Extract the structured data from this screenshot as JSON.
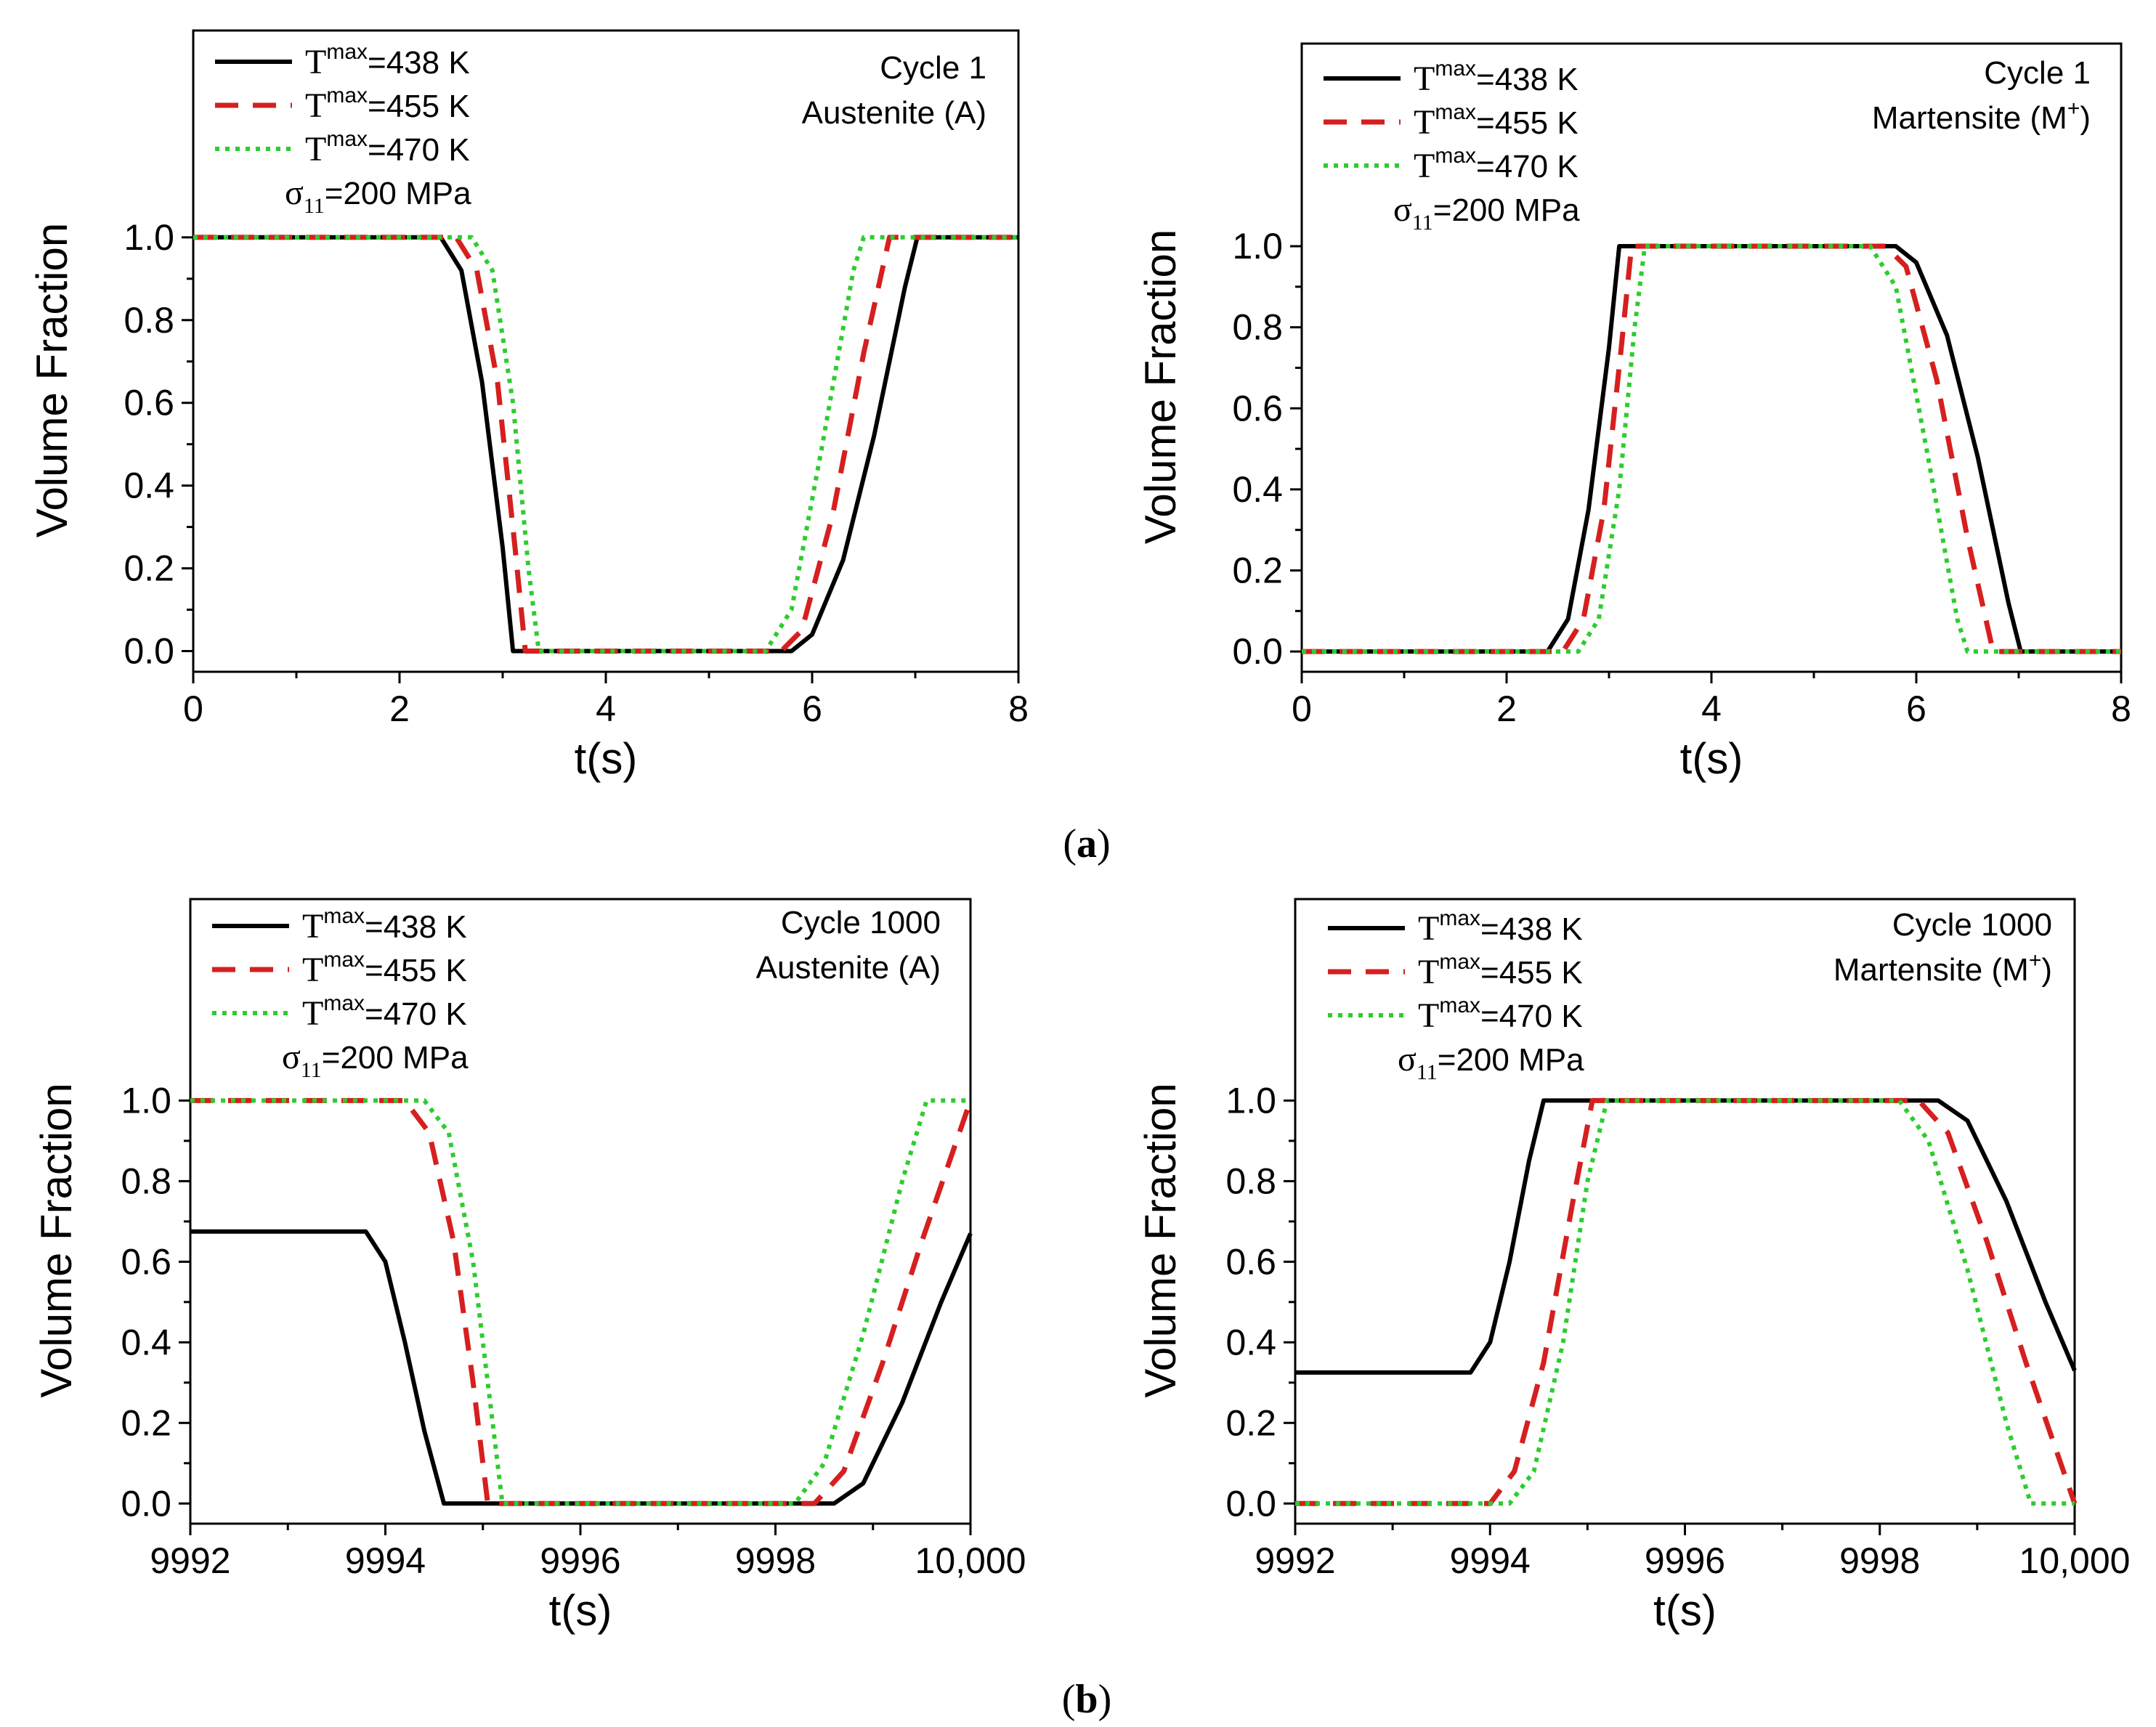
{
  "panel_labels": {
    "a": "a",
    "b": "b"
  },
  "colors": {
    "s438": "#000000",
    "s455": "#d61f1f",
    "s470": "#2ecc2e"
  },
  "chart_data": [
    {
      "type": "line",
      "id": "a-austenite",
      "title": "",
      "annotations": [
        "Cycle 1",
        "Austenite (A)"
      ],
      "xlabel": "t(s)",
      "ylabel": "Volume Fraction",
      "xlim": [
        0,
        8
      ],
      "ylim": [
        -0.05,
        1.5
      ],
      "xticks": [
        0,
        2,
        4,
        6,
        8
      ],
      "xtick_labels": [
        "0",
        "2",
        "4",
        "6",
        "8"
      ],
      "yticks": [
        0,
        0.2,
        0.4,
        0.6,
        0.8,
        1.0
      ],
      "ytick_labels": [
        "0.0",
        "0.2",
        "0.4",
        "0.6",
        "0.8",
        "1.0"
      ],
      "legend": {
        "placement": "top-left",
        "prefix": "T",
        "sup": "max",
        "entries": [
          "=438 K",
          "=455 K",
          "=470 K"
        ],
        "stress": {
          "symbol": "σ",
          "sub": "11",
          "value": "=200 MPa"
        }
      },
      "series": [
        {
          "name": "Tmax=438 K",
          "style": "solid",
          "points": [
            [
              0,
              1
            ],
            [
              2.4,
              1
            ],
            [
              2.6,
              0.92
            ],
            [
              2.8,
              0.65
            ],
            [
              3.0,
              0.25
            ],
            [
              3.1,
              0
            ],
            [
              5.8,
              0
            ],
            [
              6.0,
              0.04
            ],
            [
              6.3,
              0.22
            ],
            [
              6.6,
              0.52
            ],
            [
              6.9,
              0.88
            ],
            [
              7.02,
              1
            ],
            [
              8,
              1
            ]
          ]
        },
        {
          "name": "Tmax=455 K",
          "style": "dashed",
          "points": [
            [
              0,
              1
            ],
            [
              2.55,
              1
            ],
            [
              2.75,
              0.92
            ],
            [
              2.95,
              0.65
            ],
            [
              3.12,
              0.25
            ],
            [
              3.22,
              0
            ],
            [
              5.7,
              0
            ],
            [
              5.9,
              0.05
            ],
            [
              6.2,
              0.33
            ],
            [
              6.5,
              0.72
            ],
            [
              6.75,
              1
            ],
            [
              8,
              1
            ]
          ]
        },
        {
          "name": "Tmax=470 K",
          "style": "dotted",
          "points": [
            [
              0,
              1
            ],
            [
              2.7,
              1
            ],
            [
              2.9,
              0.92
            ],
            [
              3.1,
              0.6
            ],
            [
              3.25,
              0.2
            ],
            [
              3.35,
              0
            ],
            [
              5.55,
              0
            ],
            [
              5.8,
              0.1
            ],
            [
              6.1,
              0.5
            ],
            [
              6.4,
              0.92
            ],
            [
              6.5,
              1
            ],
            [
              8,
              1
            ]
          ]
        }
      ]
    },
    {
      "type": "line",
      "id": "a-martensite",
      "title": "",
      "annotations": [
        "Cycle 1",
        "Martensite (M",
        "+",
        ")"
      ],
      "xlabel": "t(s)",
      "ylabel": "Volume Fraction",
      "xlim": [
        0,
        8
      ],
      "ylim": [
        -0.05,
        1.5
      ],
      "xticks": [
        0,
        2,
        4,
        6,
        8
      ],
      "xtick_labels": [
        "0",
        "2",
        "4",
        "6",
        "8"
      ],
      "yticks": [
        0,
        0.2,
        0.4,
        0.6,
        0.8,
        1.0
      ],
      "ytick_labels": [
        "0.0",
        "0.2",
        "0.4",
        "0.6",
        "0.8",
        "1.0"
      ],
      "legend": {
        "placement": "top-left",
        "prefix": "T",
        "sup": "max",
        "entries": [
          "=438 K",
          "=455 K",
          "=470 K"
        ],
        "stress": {
          "symbol": "σ",
          "sub": "11",
          "value": "=200 MPa"
        }
      },
      "series": [
        {
          "name": "Tmax=438 K",
          "style": "solid",
          "points": [
            [
              0,
              0
            ],
            [
              2.4,
              0
            ],
            [
              2.6,
              0.08
            ],
            [
              2.8,
              0.35
            ],
            [
              3.0,
              0.75
            ],
            [
              3.1,
              1
            ],
            [
              5.8,
              1
            ],
            [
              6.0,
              0.96
            ],
            [
              6.3,
              0.78
            ],
            [
              6.6,
              0.48
            ],
            [
              6.9,
              0.12
            ],
            [
              7.02,
              0
            ],
            [
              8,
              0
            ]
          ]
        },
        {
          "name": "Tmax=455 K",
          "style": "dashed",
          "points": [
            [
              0,
              0
            ],
            [
              2.55,
              0
            ],
            [
              2.75,
              0.08
            ],
            [
              2.95,
              0.35
            ],
            [
              3.12,
              0.75
            ],
            [
              3.22,
              1
            ],
            [
              5.7,
              1
            ],
            [
              5.9,
              0.95
            ],
            [
              6.2,
              0.67
            ],
            [
              6.5,
              0.28
            ],
            [
              6.75,
              0
            ],
            [
              8,
              0
            ]
          ]
        },
        {
          "name": "Tmax=470 K",
          "style": "dotted",
          "points": [
            [
              0,
              0
            ],
            [
              2.7,
              0
            ],
            [
              2.9,
              0.08
            ],
            [
              3.1,
              0.4
            ],
            [
              3.25,
              0.8
            ],
            [
              3.35,
              1
            ],
            [
              5.55,
              1
            ],
            [
              5.8,
              0.9
            ],
            [
              6.1,
              0.5
            ],
            [
              6.4,
              0.08
            ],
            [
              6.5,
              0
            ],
            [
              8,
              0
            ]
          ]
        }
      ]
    },
    {
      "type": "line",
      "id": "b-austenite",
      "title": "",
      "annotations": [
        "Cycle 1000",
        "Austenite (A)"
      ],
      "xlabel": "t(s)",
      "ylabel": "Volume Fraction",
      "xlim": [
        9992,
        10000
      ],
      "ylim": [
        -0.05,
        1.5
      ],
      "xticks": [
        9992,
        9994,
        9996,
        9998,
        10000
      ],
      "xtick_labels": [
        "9992",
        "9994",
        "9996",
        "9998",
        "10,000"
      ],
      "yticks": [
        0,
        0.2,
        0.4,
        0.6,
        0.8,
        1.0
      ],
      "ytick_labels": [
        "0.0",
        "0.2",
        "0.4",
        "0.6",
        "0.8",
        "1.0"
      ],
      "legend": {
        "placement": "top-left",
        "prefix": "T",
        "sup": "max",
        "entries": [
          "=438 K",
          "=455 K",
          "=470 K"
        ],
        "stress": {
          "symbol": "σ",
          "sub": "11",
          "value": "=200 MPa"
        }
      },
      "series": [
        {
          "name": "Tmax=438 K",
          "style": "solid",
          "points": [
            [
              9992,
              0.675
            ],
            [
              9993.8,
              0.675
            ],
            [
              9994.0,
              0.6
            ],
            [
              9994.2,
              0.4
            ],
            [
              9994.4,
              0.18
            ],
            [
              9994.6,
              0
            ],
            [
              9998.6,
              0
            ],
            [
              9998.9,
              0.05
            ],
            [
              9999.3,
              0.25
            ],
            [
              9999.7,
              0.5
            ],
            [
              10000,
              0.67
            ]
          ]
        },
        {
          "name": "Tmax=455 K",
          "style": "dashed",
          "points": [
            [
              9992,
              1
            ],
            [
              9994.2,
              1
            ],
            [
              9994.45,
              0.92
            ],
            [
              9994.7,
              0.65
            ],
            [
              9994.9,
              0.3
            ],
            [
              9995.05,
              0
            ],
            [
              9998.4,
              0
            ],
            [
              9998.7,
              0.08
            ],
            [
              9999.1,
              0.35
            ],
            [
              9999.5,
              0.65
            ],
            [
              10000,
              1
            ]
          ]
        },
        {
          "name": "Tmax=470 K",
          "style": "dotted",
          "points": [
            [
              9992,
              1
            ],
            [
              9994.4,
              1
            ],
            [
              9994.65,
              0.92
            ],
            [
              9994.9,
              0.6
            ],
            [
              9995.1,
              0.2
            ],
            [
              9995.2,
              0
            ],
            [
              9998.2,
              0
            ],
            [
              9998.5,
              0.1
            ],
            [
              9998.9,
              0.42
            ],
            [
              9999.3,
              0.8
            ],
            [
              9999.55,
              1
            ],
            [
              10000,
              1
            ]
          ]
        }
      ]
    },
    {
      "type": "line",
      "id": "b-martensite",
      "title": "",
      "annotations": [
        "Cycle 1000",
        "Martensite (M",
        "+",
        ")"
      ],
      "xlabel": "t(s)",
      "ylabel": "Volume Fraction",
      "xlim": [
        9992,
        10000
      ],
      "ylim": [
        -0.05,
        1.5
      ],
      "xticks": [
        9992,
        9994,
        9996,
        9998,
        10000
      ],
      "xtick_labels": [
        "9992",
        "9994",
        "9996",
        "9998",
        "10,000"
      ],
      "yticks": [
        0,
        0.2,
        0.4,
        0.6,
        0.8,
        1.0
      ],
      "ytick_labels": [
        "0.0",
        "0.2",
        "0.4",
        "0.6",
        "0.8",
        "1.0"
      ],
      "legend": {
        "placement": "top-left",
        "prefix": "T",
        "sup": "max",
        "entries": [
          "=438 K",
          "=455 K",
          "=470 K"
        ],
        "stress": {
          "symbol": "σ",
          "sub": "11",
          "value": "=200 MPa"
        }
      },
      "series": [
        {
          "name": "Tmax=438 K",
          "style": "solid",
          "points": [
            [
              9992,
              0.325
            ],
            [
              9993.8,
              0.325
            ],
            [
              9994.0,
              0.4
            ],
            [
              9994.2,
              0.6
            ],
            [
              9994.4,
              0.85
            ],
            [
              9994.55,
              1
            ],
            [
              9998.6,
              1
            ],
            [
              9998.9,
              0.95
            ],
            [
              9999.3,
              0.75
            ],
            [
              9999.7,
              0.5
            ],
            [
              10000,
              0.33
            ]
          ]
        },
        {
          "name": "Tmax=455 K",
          "style": "dashed",
          "points": [
            [
              9992,
              0
            ],
            [
              9994.0,
              0
            ],
            [
              9994.25,
              0.08
            ],
            [
              9994.55,
              0.35
            ],
            [
              9994.85,
              0.75
            ],
            [
              9995.05,
              1
            ],
            [
              9998.4,
              1
            ],
            [
              9998.7,
              0.92
            ],
            [
              9999.1,
              0.65
            ],
            [
              9999.5,
              0.35
            ],
            [
              10000,
              0
            ]
          ]
        },
        {
          "name": "Tmax=470 K",
          "style": "dotted",
          "points": [
            [
              9992,
              0
            ],
            [
              9994.2,
              0
            ],
            [
              9994.45,
              0.08
            ],
            [
              9994.75,
              0.4
            ],
            [
              9995.0,
              0.8
            ],
            [
              9995.2,
              1
            ],
            [
              9998.2,
              1
            ],
            [
              9998.5,
              0.9
            ],
            [
              9998.9,
              0.58
            ],
            [
              9999.3,
              0.2
            ],
            [
              9999.55,
              0
            ],
            [
              10000,
              0
            ]
          ]
        }
      ]
    }
  ]
}
